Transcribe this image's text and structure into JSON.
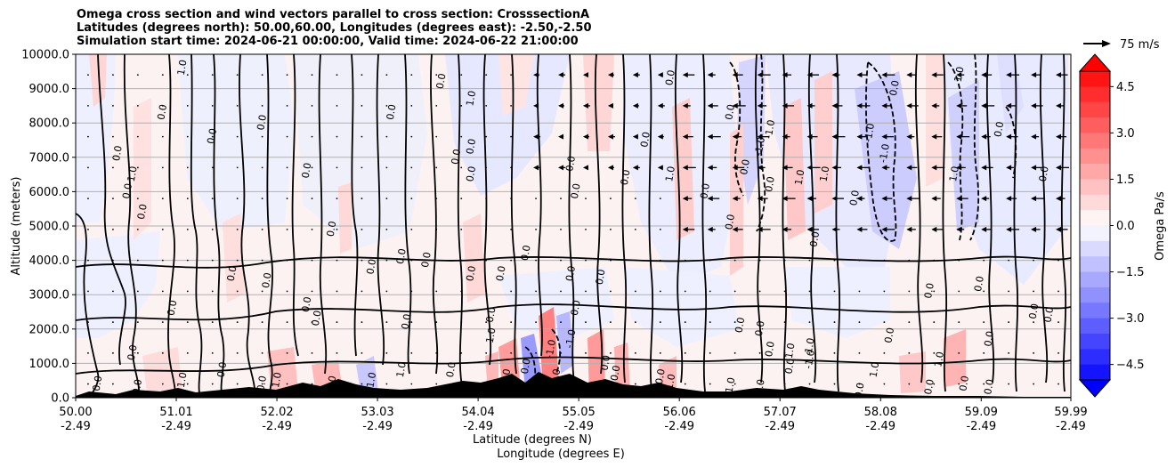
{
  "chart_data": {
    "type": "heatmap",
    "title_lines": [
      "Omega cross section and wind vectors parallel to cross section: CrosssectionA",
      "Latitudes (degrees north): 50.00,60.00, Longitudes (degrees east): -2.50,-2.50",
      "Simulation start time: 2024-06-21 00:00:00, Valid time: 2024-06-22 21:00:00"
    ],
    "ylabel": "Altitude (meters)",
    "xlabel_lat": "Latitude (degrees N)",
    "xlabel_lon": "Longitude (degrees E)",
    "ylim": [
      0,
      10000
    ],
    "yticks": [
      0,
      1000,
      2000,
      3000,
      4000,
      5000,
      6000,
      7000,
      8000,
      9000,
      10000
    ],
    "ytick_labels": [
      "0.0",
      "1000.0",
      "2000.0",
      "3000.0",
      "4000.0",
      "5000.0",
      "6000.0",
      "7000.0",
      "8000.0",
      "9000.0",
      "10000.0"
    ],
    "xlim": [
      50.0,
      59.99
    ],
    "xticks_lat": [
      50.0,
      51.01,
      52.02,
      53.03,
      54.04,
      55.05,
      56.06,
      57.07,
      58.08,
      59.09,
      59.99
    ],
    "xtick_lat_labels": [
      "50.00",
      "51.01",
      "52.02",
      "53.03",
      "54.04",
      "55.05",
      "56.06",
      "57.07",
      "58.08",
      "59.09",
      "59.99"
    ],
    "xtick_lon_labels": [
      "-2.49",
      "-2.49",
      "-2.49",
      "-2.49",
      "-2.49",
      "-2.49",
      "-2.49",
      "-2.49",
      "-2.49",
      "-2.49",
      "-2.49"
    ],
    "colorbar": {
      "label": "Omega Pa/s",
      "range": [
        -5.0,
        5.0
      ],
      "ticks": [
        4.5,
        3.0,
        1.5,
        0.0,
        -1.5,
        -3.0,
        -4.5
      ],
      "tick_labels": [
        "4.5",
        "3.0",
        "1.5",
        "0.0",
        "−1.5",
        "−3.0",
        "−4.5"
      ],
      "levels": 20
    },
    "quiver_key": "75 m/s",
    "contour_labels": [
      {
        "lat": 51.1,
        "alt": 9600,
        "text": "1.0"
      },
      {
        "lat": 50.9,
        "alt": 8300,
        "text": "0.0"
      },
      {
        "lat": 51.4,
        "alt": 7600,
        "text": "0.0"
      },
      {
        "lat": 50.45,
        "alt": 7100,
        "text": "0.0"
      },
      {
        "lat": 50.6,
        "alt": 6500,
        "text": "1.0"
      },
      {
        "lat": 50.55,
        "alt": 6000,
        "text": "0.0"
      },
      {
        "lat": 50.7,
        "alt": 5400,
        "text": "0.0"
      },
      {
        "lat": 51.9,
        "alt": 8000,
        "text": "0.0"
      },
      {
        "lat": 52.35,
        "alt": 6600,
        "text": "0.0"
      },
      {
        "lat": 52.6,
        "alt": 4900,
        "text": "0.0"
      },
      {
        "lat": 53.2,
        "alt": 8300,
        "text": "0.0"
      },
      {
        "lat": 53.85,
        "alt": 7000,
        "text": "0.0"
      },
      {
        "lat": 54.0,
        "alt": 7300,
        "text": "0.0"
      },
      {
        "lat": 54.0,
        "alt": 6500,
        "text": "0.0"
      },
      {
        "lat": 53.7,
        "alt": 9200,
        "text": "0.0"
      },
      {
        "lat": 54.0,
        "alt": 8700,
        "text": "1.0"
      },
      {
        "lat": 54.0,
        "alt": 3600,
        "text": "0.0"
      },
      {
        "lat": 53.3,
        "alt": 4100,
        "text": "0.0"
      },
      {
        "lat": 53.55,
        "alt": 4000,
        "text": "0.0"
      },
      {
        "lat": 53.0,
        "alt": 3800,
        "text": "0.0"
      },
      {
        "lat": 51.6,
        "alt": 3600,
        "text": "0.0"
      },
      {
        "lat": 51.95,
        "alt": 3400,
        "text": "0.0"
      },
      {
        "lat": 51.0,
        "alt": 2600,
        "text": "0.0"
      },
      {
        "lat": 52.35,
        "alt": 2700,
        "text": "0.0"
      },
      {
        "lat": 52.45,
        "alt": 2300,
        "text": "0.0"
      },
      {
        "lat": 53.35,
        "alt": 2200,
        "text": "0.0"
      },
      {
        "lat": 54.3,
        "alt": 3600,
        "text": "0.0"
      },
      {
        "lat": 54.55,
        "alt": 4200,
        "text": "0.0"
      },
      {
        "lat": 55.75,
        "alt": 7500,
        "text": "0.0"
      },
      {
        "lat": 55.55,
        "alt": 6400,
        "text": "0.0"
      },
      {
        "lat": 55.05,
        "alt": 6000,
        "text": "0.0"
      },
      {
        "lat": 55.0,
        "alt": 6800,
        "text": "0.0"
      },
      {
        "lat": 55.0,
        "alt": 3600,
        "text": "0.0"
      },
      {
        "lat": 55.05,
        "alt": 2600,
        "text": "0.0"
      },
      {
        "lat": 55.3,
        "alt": 3500,
        "text": "0.0"
      },
      {
        "lat": 54.2,
        "alt": 2400,
        "text": "0.0"
      },
      {
        "lat": 54.2,
        "alt": 1800,
        "text": "1.0"
      },
      {
        "lat": 56.0,
        "alt": 6500,
        "text": "1.0"
      },
      {
        "lat": 56.0,
        "alt": 9300,
        "text": "0.0"
      },
      {
        "lat": 56.35,
        "alt": 6000,
        "text": "0.0"
      },
      {
        "lat": 57.3,
        "alt": 6400,
        "text": "1.0"
      },
      {
        "lat": 57.55,
        "alt": 6500,
        "text": "1.0"
      },
      {
        "lat": 56.6,
        "alt": 8300,
        "text": "0.0"
      },
      {
        "lat": 56.75,
        "alt": 6700,
        "text": "0.0"
      },
      {
        "lat": 56.9,
        "alt": 7300,
        "text": "-1.0"
      },
      {
        "lat": 57.0,
        "alt": 6200,
        "text": "0.0"
      },
      {
        "lat": 56.6,
        "alt": 5100,
        "text": "0.0"
      },
      {
        "lat": 57.0,
        "alt": 7800,
        "text": "-1.0"
      },
      {
        "lat": 58.0,
        "alt": 7700,
        "text": "-1.0"
      },
      {
        "lat": 58.15,
        "alt": 7100,
        "text": "-1.0"
      },
      {
        "lat": 57.85,
        "alt": 5800,
        "text": "0.0"
      },
      {
        "lat": 57.45,
        "alt": 4600,
        "text": "0.0"
      },
      {
        "lat": 58.25,
        "alt": 9000,
        "text": "0.0"
      },
      {
        "lat": 58.9,
        "alt": 9400,
        "text": "1.0"
      },
      {
        "lat": 59.3,
        "alt": 7800,
        "text": "0.0"
      },
      {
        "lat": 58.85,
        "alt": 6500,
        "text": "1.0"
      },
      {
        "lat": 58.6,
        "alt": 3100,
        "text": "0.0"
      },
      {
        "lat": 59.1,
        "alt": 3300,
        "text": "0.0"
      },
      {
        "lat": 59.75,
        "alt": 6500,
        "text": "0.0"
      },
      {
        "lat": 59.65,
        "alt": 2500,
        "text": "0.0"
      },
      {
        "lat": 59.8,
        "alt": 2400,
        "text": "0.0"
      },
      {
        "lat": 56.7,
        "alt": 2100,
        "text": "0.0"
      },
      {
        "lat": 56.9,
        "alt": 2000,
        "text": "0.0"
      },
      {
        "lat": 57.0,
        "alt": 1400,
        "text": "0.0"
      },
      {
        "lat": 57.2,
        "alt": 1300,
        "text": "-1.0"
      },
      {
        "lat": 57.4,
        "alt": 1100,
        "text": "-1.0"
      },
      {
        "lat": 57.2,
        "alt": 900,
        "text": "0.0"
      },
      {
        "lat": 58.2,
        "alt": 1800,
        "text": "0.0"
      },
      {
        "lat": 58.05,
        "alt": 800,
        "text": "1.0"
      },
      {
        "lat": 58.7,
        "alt": 1100,
        "text": "1.0"
      },
      {
        "lat": 59.2,
        "alt": 1700,
        "text": "0.0"
      },
      {
        "lat": 57.4,
        "alt": 1500,
        "text": "1.0"
      },
      {
        "lat": 56.6,
        "alt": 300,
        "text": "-1.0"
      },
      {
        "lat": 55.9,
        "alt": 600,
        "text": "0.0"
      },
      {
        "lat": 56.0,
        "alt": 400,
        "text": "-1.0"
      },
      {
        "lat": 55.35,
        "alt": 1000,
        "text": "0.0"
      },
      {
        "lat": 55.45,
        "alt": 700,
        "text": "0.0"
      },
      {
        "lat": 55.0,
        "alt": 1700,
        "text": "-1.0"
      },
      {
        "lat": 54.8,
        "alt": 1400,
        "text": "-1.0"
      },
      {
        "lat": 53.3,
        "alt": 800,
        "text": "1.0"
      },
      {
        "lat": 53.8,
        "alt": 800,
        "text": "0.0"
      },
      {
        "lat": 53.0,
        "alt": 500,
        "text": "1.0"
      },
      {
        "lat": 52.6,
        "alt": 400,
        "text": "2.0"
      },
      {
        "lat": 52.05,
        "alt": 500,
        "text": "1.0"
      },
      {
        "lat": 51.1,
        "alt": 500,
        "text": "1.0"
      },
      {
        "lat": 50.65,
        "alt": 300,
        "text": "0.0"
      },
      {
        "lat": 50.25,
        "alt": 400,
        "text": "0.0"
      },
      {
        "lat": 50.6,
        "alt": 1300,
        "text": "0.0"
      },
      {
        "lat": 51.5,
        "alt": 800,
        "text": "0.0"
      },
      {
        "lat": 51.9,
        "alt": 400,
        "text": "0.0"
      },
      {
        "lat": 54.35,
        "alt": 600,
        "text": "1.0"
      },
      {
        "lat": 54.55,
        "alt": 900,
        "text": "0.0"
      },
      {
        "lat": 54.65,
        "alt": 400,
        "text": "2.0"
      },
      {
        "lat": 54.85,
        "alt": 600,
        "text": "1.0"
      },
      {
        "lat": 56.9,
        "alt": 300,
        "text": "1.0"
      },
      {
        "lat": 58.6,
        "alt": 300,
        "text": "0.0"
      },
      {
        "lat": 58.95,
        "alt": 400,
        "text": "0.0"
      },
      {
        "lat": 59.2,
        "alt": 300,
        "text": "0.0"
      },
      {
        "lat": 57.9,
        "alt": 200,
        "text": "0.0"
      }
    ]
  }
}
